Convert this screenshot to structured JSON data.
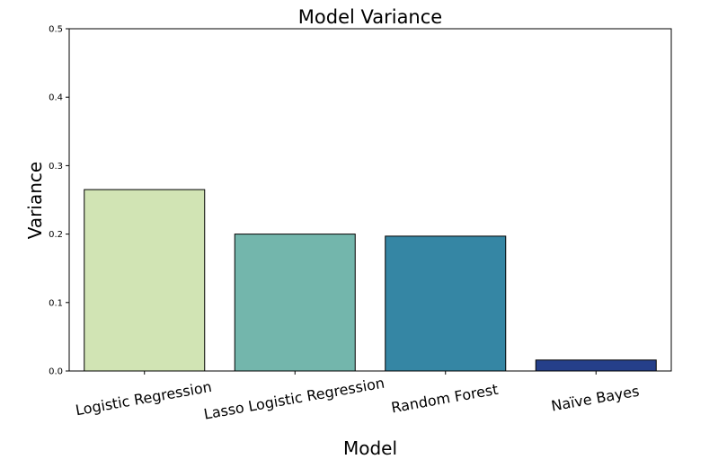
{
  "chart_data": {
    "type": "bar",
    "title": "Model Variance",
    "xlabel": "Model",
    "ylabel": "Variance",
    "categories": [
      "Logistic Regression",
      "Lasso Logistic Regression",
      "Random Forest",
      "Naïve Bayes"
    ],
    "values": [
      0.265,
      0.2,
      0.197,
      0.016
    ],
    "ylim": [
      0,
      0.5
    ],
    "yticks": [
      "0.0",
      "0.1",
      "0.2",
      "0.3",
      "0.4",
      "0.5"
    ],
    "bar_colors": [
      "#d1e4b4",
      "#73b6ac",
      "#3586a4",
      "#253f8a"
    ],
    "grid": false,
    "legend": "none"
  }
}
